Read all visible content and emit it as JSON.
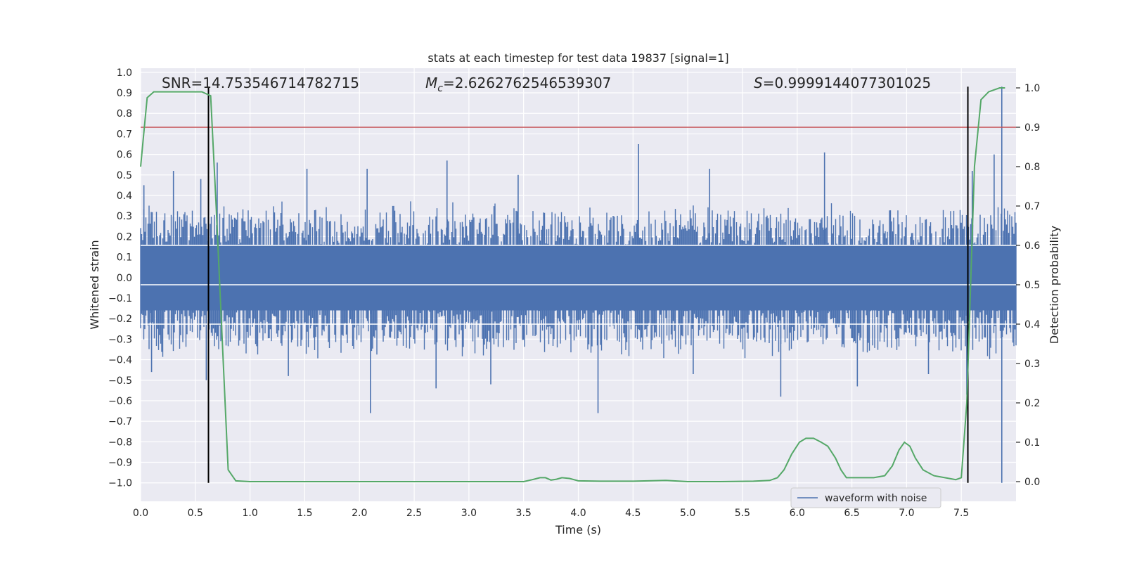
{
  "chart_data": {
    "type": "line",
    "title": "stats at each timestep for test data 19837 [signal=1]",
    "xlabel": "Time (s)",
    "ylabel": "Whitened strain",
    "y2label": "Detection probability",
    "xlim": [
      0.0,
      8.0
    ],
    "ylim": [
      -1.09,
      1.02
    ],
    "y2lim": [
      -0.05,
      1.05
    ],
    "x_ticks": [
      0.0,
      0.5,
      1.0,
      1.5,
      2.0,
      2.5,
      3.0,
      3.5,
      4.0,
      4.5,
      5.0,
      5.5,
      6.0,
      6.5,
      7.0,
      7.5
    ],
    "x_tick_labels": [
      "0.0",
      "0.5",
      "1.0",
      "1.5",
      "2.0",
      "2.5",
      "3.0",
      "3.5",
      "4.0",
      "4.5",
      "5.0",
      "5.5",
      "6.0",
      "6.5",
      "7.0",
      "7.5"
    ],
    "y_ticks": [
      1.0,
      0.9,
      0.8,
      0.7,
      0.6,
      0.5,
      0.4,
      0.3,
      0.2,
      0.1,
      0.0,
      -0.1,
      -0.2,
      -0.3,
      -0.4,
      -0.5,
      -0.6,
      -0.7,
      -0.8,
      -0.9,
      -1.0
    ],
    "y_tick_labels": [
      "1.0",
      "0.9",
      "0.8",
      "0.7",
      "0.6",
      "0.5",
      "0.4",
      "0.3",
      "0.2",
      "0.1",
      "0.0",
      "−0.1",
      "−0.2",
      "−0.3",
      "−0.4",
      "−0.5",
      "−0.6",
      "−0.7",
      "−0.8",
      "−0.9",
      "−1.0"
    ],
    "y2_ticks": [
      1.0,
      0.9,
      0.8,
      0.7,
      0.6,
      0.5,
      0.4,
      0.3,
      0.2,
      0.1,
      0.0
    ],
    "y2_tick_labels": [
      "1.0",
      "0.9",
      "0.8",
      "0.7",
      "0.6",
      "0.5",
      "0.4",
      "0.3",
      "0.2",
      "0.1",
      "0.0"
    ],
    "grid": true,
    "annotations": {
      "snr": "SNR=14.753546714782715",
      "mc_symbol": "M",
      "mc_sub": "c",
      "mc_value": "=2.6262762546539307",
      "s_symbol": "S",
      "s_value": "=0.9999144077301025"
    },
    "legend": {
      "position": "lower-right",
      "entries": [
        {
          "name": "waveform with noise",
          "color": "#4c72b0"
        }
      ]
    },
    "series": [
      {
        "name": "waveform with noise",
        "color": "#4c72b0",
        "axis": "left",
        "kind": "noise-band",
        "envelope": {
          "upper": 0.33,
          "lower": -0.36
        },
        "spikes": [
          [
            0.03,
            0.45
          ],
          [
            0.3,
            0.52
          ],
          [
            0.55,
            0.48
          ],
          [
            0.7,
            0.56
          ],
          [
            1.52,
            0.53
          ],
          [
            2.07,
            0.53
          ],
          [
            2.8,
            0.57
          ],
          [
            3.45,
            0.5
          ],
          [
            4.55,
            0.65
          ],
          [
            5.2,
            0.53
          ],
          [
            6.25,
            0.61
          ],
          [
            7.6,
            0.52
          ],
          [
            7.8,
            0.6
          ],
          [
            7.87,
            0.93
          ],
          [
            0.1,
            -0.46
          ],
          [
            0.6,
            -0.5
          ],
          [
            1.35,
            -0.48
          ],
          [
            2.1,
            -0.66
          ],
          [
            2.7,
            -0.54
          ],
          [
            3.2,
            -0.52
          ],
          [
            4.18,
            -0.66
          ],
          [
            5.05,
            -0.47
          ],
          [
            5.85,
            -0.58
          ],
          [
            6.55,
            -0.53
          ],
          [
            7.2,
            -0.47
          ],
          [
            7.55,
            -0.57
          ],
          [
            7.87,
            -1.0
          ]
        ]
      },
      {
        "name": "detection probability",
        "color": "#55a868",
        "axis": "right",
        "x": [
          0.0,
          0.06,
          0.12,
          0.25,
          0.4,
          0.56,
          0.64,
          0.69,
          0.8,
          0.87,
          1.0,
          1.2,
          1.4,
          2.0,
          3.0,
          3.5,
          3.58,
          3.65,
          3.7,
          3.75,
          3.8,
          3.85,
          3.92,
          4.0,
          4.2,
          4.5,
          4.8,
          5.0,
          5.3,
          5.6,
          5.75,
          5.82,
          5.88,
          5.95,
          6.02,
          6.08,
          6.15,
          6.22,
          6.28,
          6.35,
          6.4,
          6.45,
          6.5,
          6.6,
          6.7,
          6.8,
          6.87,
          6.93,
          6.98,
          7.03,
          7.08,
          7.15,
          7.25,
          7.35,
          7.45,
          7.5,
          7.55,
          7.62,
          7.68,
          7.75,
          7.85,
          7.9
        ],
        "y": [
          0.8,
          0.975,
          0.99,
          0.99,
          0.99,
          0.99,
          0.98,
          0.7,
          0.03,
          0.002,
          0.0,
          0.0,
          0.0,
          0.0,
          0.0,
          0.0,
          0.005,
          0.01,
          0.01,
          0.004,
          0.006,
          0.01,
          0.008,
          0.002,
          0.001,
          0.001,
          0.003,
          0.0,
          0.0,
          0.001,
          0.003,
          0.01,
          0.03,
          0.07,
          0.1,
          0.11,
          0.11,
          0.1,
          0.09,
          0.06,
          0.03,
          0.01,
          0.01,
          0.01,
          0.01,
          0.015,
          0.04,
          0.08,
          0.1,
          0.09,
          0.06,
          0.03,
          0.015,
          0.01,
          0.005,
          0.01,
          0.2,
          0.8,
          0.97,
          0.99,
          1.0,
          1.0
        ]
      },
      {
        "name": "threshold",
        "color": "#c44e52",
        "axis": "right",
        "kind": "hline",
        "value": 0.9
      },
      {
        "name": "detection window",
        "color": "#000000",
        "axis": "left",
        "kind": "vlines",
        "x": [
          0.62,
          7.56
        ],
        "ymin": -1.0,
        "ymax": 0.93
      }
    ],
    "white_bands_right_axis": [
      0.4,
      0.5,
      0.6
    ]
  }
}
